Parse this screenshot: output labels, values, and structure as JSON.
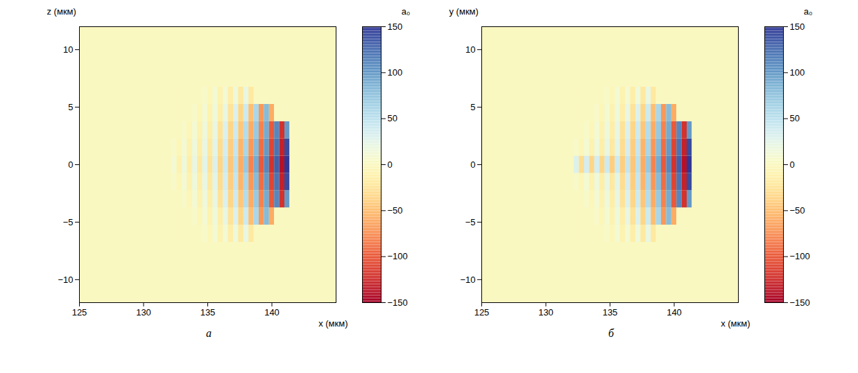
{
  "chart_data": [
    {
      "type": "heatmap",
      "title": "а",
      "xlabel": "x (мкм)",
      "ylabel": "z (мкм)",
      "xlim": [
        125,
        145
      ],
      "ylim": [
        -12,
        12
      ],
      "xticks": [
        125,
        130,
        135,
        140
      ],
      "yticks": [
        -10,
        -5,
        0,
        5,
        10
      ],
      "color": "RdYlBu",
      "colorbar": {
        "label": "a₀",
        "range": [
          -150,
          150
        ],
        "ticks": [
          -150,
          -100,
          -50,
          0,
          50,
          100,
          150
        ]
      },
      "cells": {
        "x": [
          132.4,
          132.8,
          133.2,
          133.6,
          134.0,
          134.4,
          134.8,
          135.2,
          135.6,
          136.0,
          136.4,
          136.8,
          137.2,
          137.6,
          138.0,
          138.4,
          138.8,
          139.2,
          139.6,
          140.0,
          140.4,
          140.8,
          141.2,
          141.6
        ],
        "y": [
          -6,
          -4.5,
          -3,
          -1.5,
          0,
          1.5,
          3,
          4.5,
          6
        ],
        "values": [
          [
            0,
            0,
            0,
            0,
            0,
            0,
            5,
            -5,
            10,
            -10,
            10,
            -15,
            15,
            -20,
            20,
            -20,
            0,
            0,
            0,
            0,
            0,
            0,
            0,
            0
          ],
          [
            0,
            0,
            0,
            0,
            5,
            -5,
            10,
            -10,
            15,
            -15,
            20,
            -25,
            30,
            -35,
            40,
            -50,
            60,
            -70,
            80,
            -60,
            0,
            0,
            0,
            0
          ],
          [
            0,
            0,
            5,
            -5,
            10,
            -10,
            15,
            -15,
            20,
            -25,
            30,
            -35,
            40,
            -45,
            55,
            -60,
            70,
            -80,
            90,
            -100,
            110,
            -120,
            100,
            0
          ],
          [
            5,
            -5,
            10,
            -10,
            15,
            -15,
            20,
            -20,
            25,
            -30,
            35,
            -40,
            45,
            -55,
            60,
            -70,
            80,
            -90,
            100,
            -110,
            120,
            -130,
            140,
            0
          ],
          [
            10,
            -10,
            15,
            -15,
            20,
            -20,
            25,
            -25,
            30,
            -35,
            40,
            -45,
            50,
            -60,
            70,
            -80,
            90,
            -100,
            110,
            -120,
            130,
            -140,
            150,
            0
          ],
          [
            5,
            -5,
            10,
            -10,
            15,
            -15,
            20,
            -20,
            25,
            -30,
            35,
            -40,
            45,
            -55,
            60,
            -70,
            80,
            -90,
            100,
            -110,
            120,
            -130,
            140,
            0
          ],
          [
            0,
            0,
            5,
            -5,
            10,
            -10,
            15,
            -15,
            20,
            -25,
            30,
            -35,
            40,
            -45,
            55,
            -60,
            70,
            -80,
            90,
            -100,
            110,
            -120,
            100,
            0
          ],
          [
            0,
            0,
            0,
            0,
            5,
            -5,
            10,
            -10,
            15,
            -15,
            20,
            -25,
            30,
            -35,
            40,
            -50,
            60,
            -70,
            80,
            -60,
            0,
            0,
            0,
            0
          ],
          [
            0,
            0,
            0,
            0,
            0,
            0,
            5,
            -5,
            10,
            -10,
            10,
            -15,
            15,
            -20,
            20,
            -20,
            0,
            0,
            0,
            0,
            0,
            0,
            0,
            0
          ]
        ]
      }
    },
    {
      "type": "heatmap",
      "title": "б",
      "xlabel": "x (мкм)",
      "ylabel": "y (мкм)",
      "xlim": [
        125,
        145
      ],
      "ylim": [
        -12,
        12
      ],
      "xticks": [
        125,
        130,
        135,
        140
      ],
      "yticks": [
        -10,
        -5,
        0,
        5,
        10
      ],
      "color": "RdYlBu",
      "colorbar": {
        "label": "a₀",
        "range": [
          -150,
          150
        ],
        "ticks": [
          -150,
          -100,
          -50,
          0,
          50,
          100,
          150
        ]
      },
      "cells": {
        "x": [
          132.4,
          132.8,
          133.2,
          133.6,
          134.0,
          134.4,
          134.8,
          135.2,
          135.6,
          136.0,
          136.4,
          136.8,
          137.2,
          137.6,
          138.0,
          138.4,
          138.8,
          139.2,
          139.6,
          140.0,
          140.4,
          140.8,
          141.2,
          141.6
        ],
        "y": [
          -6,
          -4.5,
          -3,
          -1.5,
          0,
          1.5,
          3,
          4.5,
          6
        ],
        "values": [
          [
            0,
            0,
            0,
            0,
            0,
            0,
            5,
            -5,
            10,
            -10,
            10,
            -15,
            15,
            -20,
            20,
            -20,
            0,
            0,
            0,
            0,
            0,
            0,
            0,
            0
          ],
          [
            0,
            0,
            0,
            0,
            5,
            -5,
            10,
            -10,
            15,
            -15,
            20,
            -25,
            30,
            -35,
            40,
            -50,
            60,
            -70,
            80,
            -60,
            0,
            0,
            0,
            0
          ],
          [
            0,
            0,
            5,
            -5,
            10,
            -10,
            15,
            -15,
            20,
            -25,
            30,
            -35,
            40,
            -45,
            55,
            -60,
            70,
            -80,
            90,
            -100,
            110,
            -120,
            100,
            0
          ],
          [
            5,
            -5,
            10,
            -10,
            15,
            -15,
            20,
            -20,
            25,
            -30,
            35,
            -40,
            45,
            -55,
            60,
            -70,
            80,
            -90,
            100,
            -110,
            120,
            -130,
            140,
            0
          ],
          [
            30,
            -30,
            35,
            -35,
            35,
            -35,
            40,
            -40,
            40,
            -40,
            45,
            -45,
            50,
            -60,
            70,
            -80,
            90,
            -100,
            110,
            -120,
            130,
            -140,
            150,
            0
          ],
          [
            5,
            -5,
            10,
            -10,
            15,
            -15,
            20,
            -20,
            25,
            -30,
            35,
            -40,
            45,
            -55,
            60,
            -70,
            80,
            -90,
            100,
            -110,
            120,
            -130,
            140,
            0
          ],
          [
            0,
            0,
            5,
            -5,
            10,
            -10,
            15,
            -15,
            20,
            -25,
            30,
            -35,
            40,
            -45,
            55,
            -60,
            70,
            -80,
            90,
            -100,
            110,
            -120,
            100,
            0
          ],
          [
            0,
            0,
            0,
            0,
            5,
            -5,
            10,
            -10,
            15,
            -15,
            20,
            -25,
            30,
            -35,
            40,
            -50,
            60,
            -70,
            80,
            -60,
            0,
            0,
            0,
            0
          ],
          [
            0,
            0,
            0,
            0,
            0,
            0,
            5,
            -5,
            10,
            -10,
            10,
            -15,
            15,
            -20,
            20,
            -20,
            0,
            0,
            0,
            0,
            0,
            0,
            0,
            0
          ]
        ]
      }
    }
  ]
}
